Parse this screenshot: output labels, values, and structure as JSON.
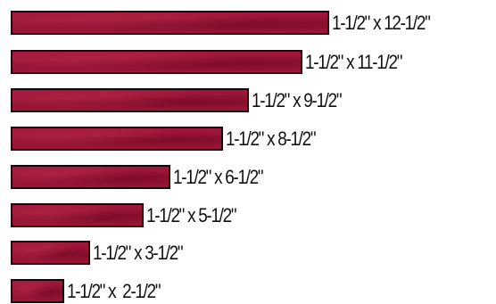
{
  "strips": [
    {
      "label": "1-1/2\" x 12-1/2\"",
      "length_in": 12.5
    },
    {
      "label": "1-1/2\" x 11-1/2\"",
      "length_in": 11.5
    },
    {
      "label": "1-1/2\" x 9-1/2\"",
      "length_in": 9.5
    },
    {
      "label": "1-1/2\" x 8-1/2\"",
      "length_in": 8.5
    },
    {
      "label": "1-1/2\" x 6-1/2\"",
      "length_in": 6.5
    },
    {
      "label": "1-1/2\" x 5-1/2\"",
      "length_in": 5.5
    },
    {
      "label": "1-1/2\" x 3-1/2\"",
      "length_in": 3.5
    },
    {
      "label": "1-1/2\" x  2-1/2\"",
      "length_in": 2.5
    }
  ],
  "colors": {
    "fabric": "#9a1537",
    "outline": "#1a0008",
    "text": "#111111"
  }
}
